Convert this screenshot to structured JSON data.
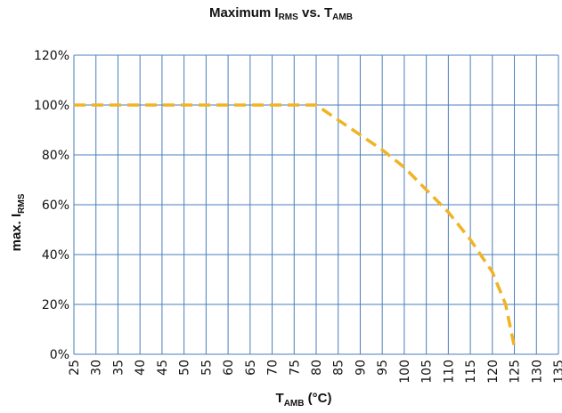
{
  "chart_data": {
    "type": "line",
    "title": {
      "main": "Maximum I",
      "main_sub": "RMS",
      "mid": " vs. T",
      "end_sub": "AMB"
    },
    "xlabel": {
      "main": "T",
      "sub": "AMB",
      "tail": " (°C)"
    },
    "ylabel": {
      "main": "max. I",
      "sub": "RMS"
    },
    "x_ticks": [
      25,
      30,
      35,
      40,
      45,
      50,
      55,
      60,
      65,
      70,
      75,
      80,
      85,
      90,
      95,
      100,
      105,
      110,
      115,
      120,
      125,
      130,
      135
    ],
    "y_ticks": [
      "0%",
      "20%",
      "40%",
      "60%",
      "80%",
      "100%",
      "120%"
    ],
    "xlim": [
      25,
      135
    ],
    "ylim": [
      0,
      120
    ],
    "grid": true,
    "colors": {
      "line": "#f0b323",
      "grid": "#4a7ebb",
      "text": "#111111"
    },
    "series": [
      {
        "style": "dashed",
        "x": [
          25,
          80,
          85,
          90,
          95,
          100,
          105,
          110,
          115,
          120,
          123,
          125
        ],
        "y": [
          100,
          100,
          94,
          88,
          82,
          75,
          66,
          57,
          46,
          33,
          20,
          3
        ]
      }
    ]
  }
}
